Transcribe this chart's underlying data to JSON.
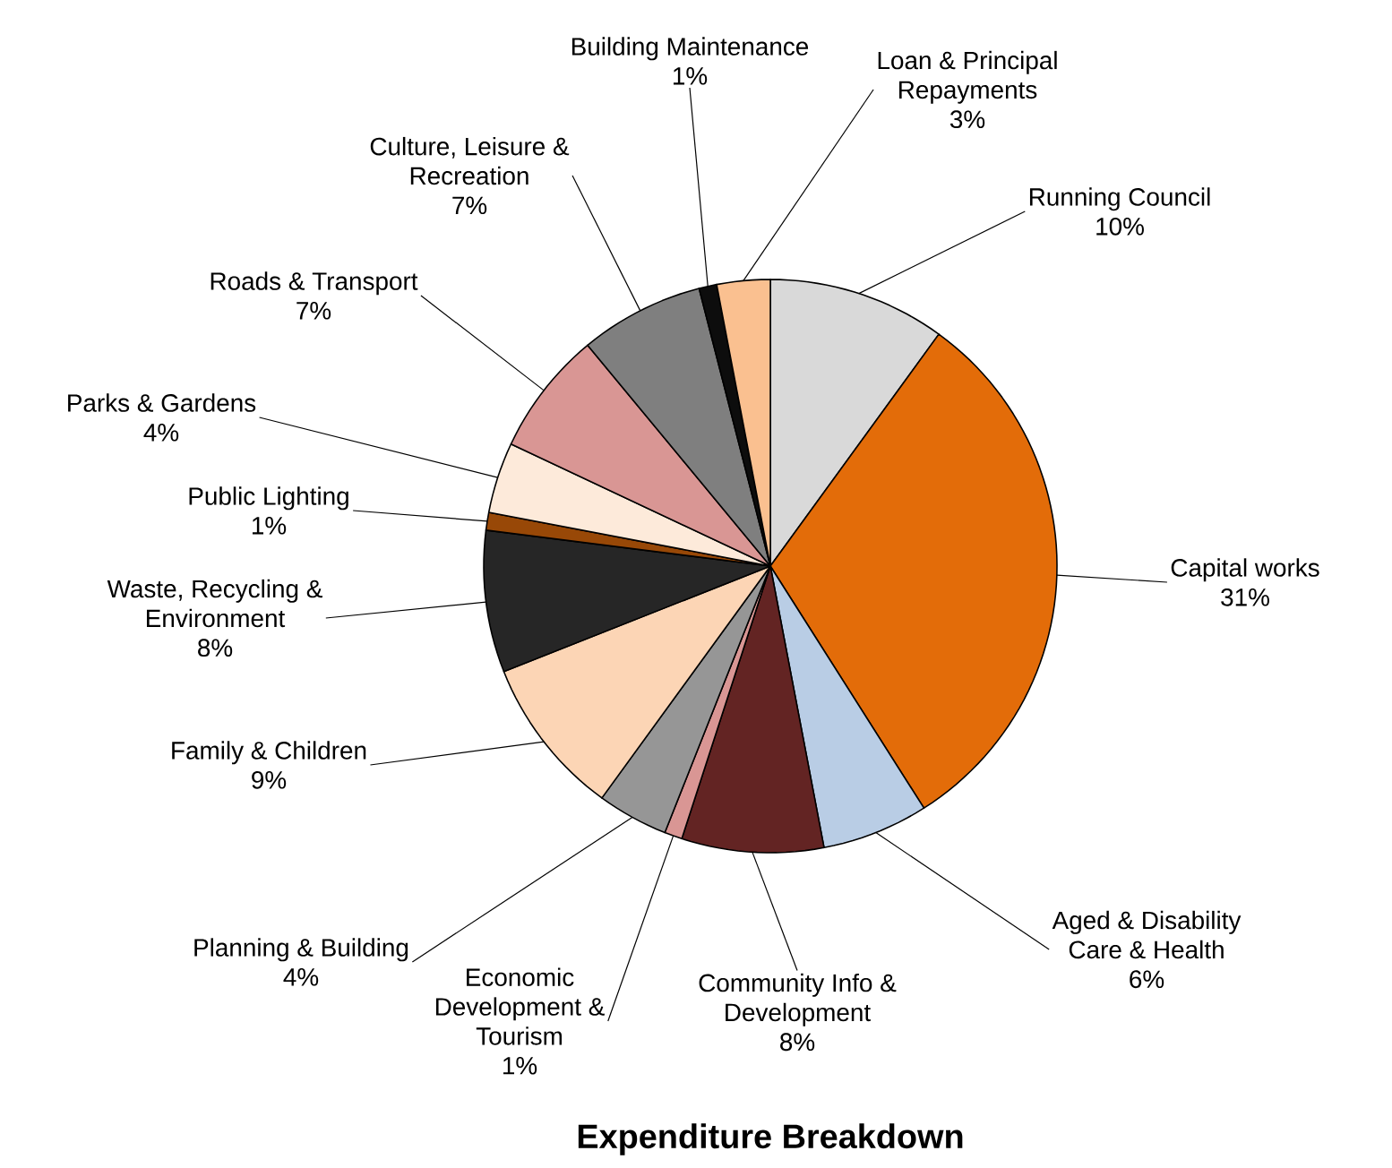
{
  "chart_data": {
    "type": "pie",
    "title": "Expenditure Breakdown",
    "categories": [
      "Running Council",
      "Capital works",
      "Aged & Disability Care & Health",
      "Community Info & Development",
      "Economic Development & Tourism",
      "Planning & Building",
      "Family & Children",
      "Waste, Recycling & Environment",
      "Public Lighting",
      "Parks & Gardens",
      "Roads & Transport",
      "Culture, Leisure & Recreation",
      "Building Maintenance",
      "Loan & Principal Repayments"
    ],
    "values": [
      10,
      31,
      6,
      8,
      1,
      4,
      9,
      8,
      1,
      4,
      7,
      7,
      1,
      3
    ],
    "value_labels": [
      "10%",
      "31%",
      "6%",
      "8%",
      "1%",
      "4%",
      "9%",
      "8%",
      "1%",
      "4%",
      "7%",
      "7%",
      "1%",
      "3%"
    ],
    "colors": [
      "#d9d9d9",
      "#e36c09",
      "#b9cde5",
      "#632423",
      "#d99694",
      "#969696",
      "#fcd5b5",
      "#262626",
      "#984807",
      "#fdeada",
      "#d99694",
      "#7f7f7f",
      "#0d0d0d",
      "#fac090"
    ]
  }
}
